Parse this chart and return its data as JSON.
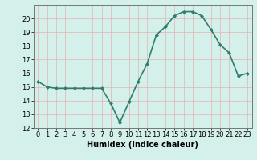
{
  "x": [
    0,
    1,
    2,
    3,
    4,
    5,
    6,
    7,
    8,
    9,
    10,
    11,
    12,
    13,
    14,
    15,
    16,
    17,
    18,
    19,
    20,
    21,
    22,
    23
  ],
  "y": [
    15.4,
    15.0,
    14.9,
    14.9,
    14.9,
    14.9,
    14.9,
    14.9,
    13.8,
    12.4,
    13.9,
    15.4,
    16.7,
    18.8,
    19.4,
    20.2,
    20.5,
    20.5,
    20.2,
    19.2,
    18.1,
    17.5,
    15.8,
    16.0
  ],
  "line_color": "#2e7d6e",
  "marker": "D",
  "marker_size": 2.0,
  "bg_color": "#d4f0ea",
  "grid_color": "#e8b0b0",
  "axis_color": "#777777",
  "xlabel": "Humidex (Indice chaleur)",
  "xlabel_fontsize": 7,
  "ylim": [
    12,
    21
  ],
  "xlim": [
    -0.5,
    23.5
  ],
  "yticks": [
    12,
    13,
    14,
    15,
    16,
    17,
    18,
    19,
    20
  ],
  "xticks": [
    0,
    1,
    2,
    3,
    4,
    5,
    6,
    7,
    8,
    9,
    10,
    11,
    12,
    13,
    14,
    15,
    16,
    17,
    18,
    19,
    20,
    21,
    22,
    23
  ],
  "tick_fontsize": 6,
  "linewidth": 1.2
}
